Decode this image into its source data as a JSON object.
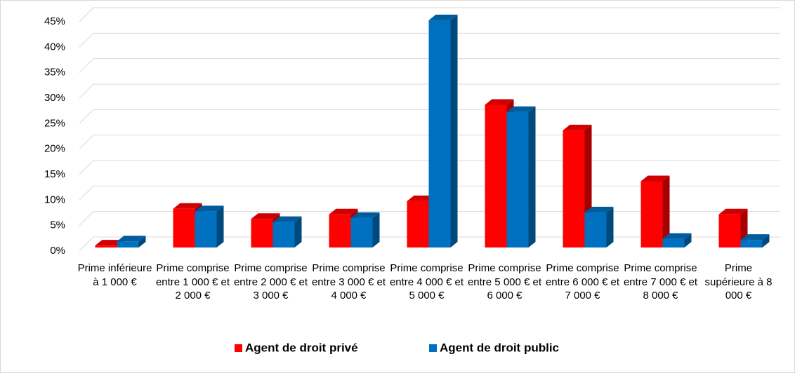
{
  "chart_data": {
    "type": "bar3d",
    "categories": [
      "Prime inférieure à 1 000 €",
      "Prime comprise entre 1 000 € et 2 000 €",
      "Prime comprise entre 2 000 € et 3 000 €",
      "Prime comprise entre 3 000 € et 4 000 €",
      "Prime comprise entre 4 000 € et 5 000 €",
      "Prime comprise entre 5 000 € et 6 000 €",
      "Prime comprise entre 6 000 € et 7 000 €",
      "Prime comprise entre 7 000 € et 8 000 €",
      "Prime supérieure à 8 000 €"
    ],
    "series": [
      {
        "name": "Agent de droit privé",
        "color": "#ff0000",
        "values": [
          0.4,
          7.6,
          5.6,
          6.5,
          9.1,
          28.0,
          23.0,
          13.0,
          6.5
        ]
      },
      {
        "name": "Agent de droit public",
        "color": "#0070c0",
        "values": [
          1.2,
          7.1,
          5.0,
          5.8,
          44.6,
          26.6,
          6.9,
          1.7,
          1.5
        ]
      }
    ],
    "ylim": [
      0,
      45
    ],
    "yticks": [
      {
        "value": 0,
        "label": "0%"
      },
      {
        "value": 5,
        "label": "5%"
      },
      {
        "value": 10,
        "label": "10%"
      },
      {
        "value": 15,
        "label": "15%"
      },
      {
        "value": 20,
        "label": "20%"
      },
      {
        "value": 25,
        "label": "25%"
      },
      {
        "value": 30,
        "label": "30%"
      },
      {
        "value": 35,
        "label": "35%"
      },
      {
        "value": 40,
        "label": "40%"
      },
      {
        "value": 45,
        "label": "45%"
      }
    ],
    "grid": true,
    "legend": "bottom"
  }
}
